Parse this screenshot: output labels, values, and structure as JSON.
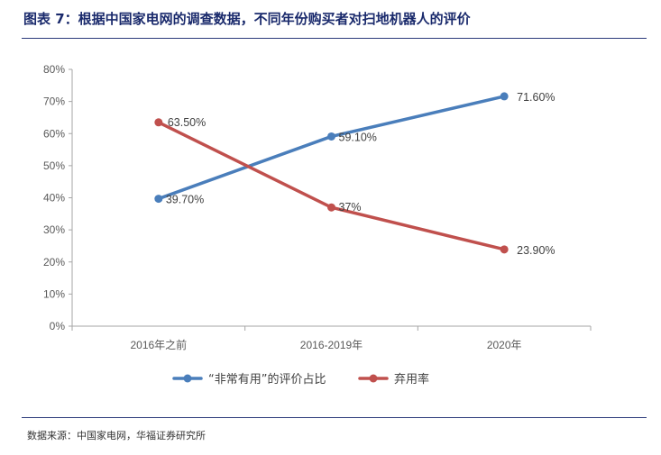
{
  "figure": {
    "title": "图表 7：根据中国家电网的调查数据，不同年份购买者对扫地机器人的评价",
    "source": "数据来源：中国家电网，华福证券研究所"
  },
  "chart_data": {
    "type": "line",
    "categories": [
      "2016年之前",
      "2016-2019年",
      "2020年"
    ],
    "ylim": [
      0,
      80
    ],
    "yticks": [
      0,
      10,
      20,
      30,
      40,
      50,
      60,
      70,
      80
    ],
    "ytick_labels": [
      "0%",
      "10%",
      "20%",
      "30%",
      "40%",
      "50%",
      "60%",
      "70%",
      "80%"
    ],
    "grid": false,
    "legend_position": "bottom",
    "series": [
      {
        "name": "“非常有用”的评价占比",
        "color": "#4a7ebb",
        "values": [
          39.7,
          59.1,
          71.6
        ],
        "labels": [
          "39.70%",
          "59.10%",
          "71.60%"
        ]
      },
      {
        "name": "弃用率",
        "color": "#c0504d",
        "values": [
          63.5,
          37,
          23.9
        ],
        "labels": [
          "63.50%",
          "37%",
          "23.90%"
        ]
      }
    ]
  }
}
